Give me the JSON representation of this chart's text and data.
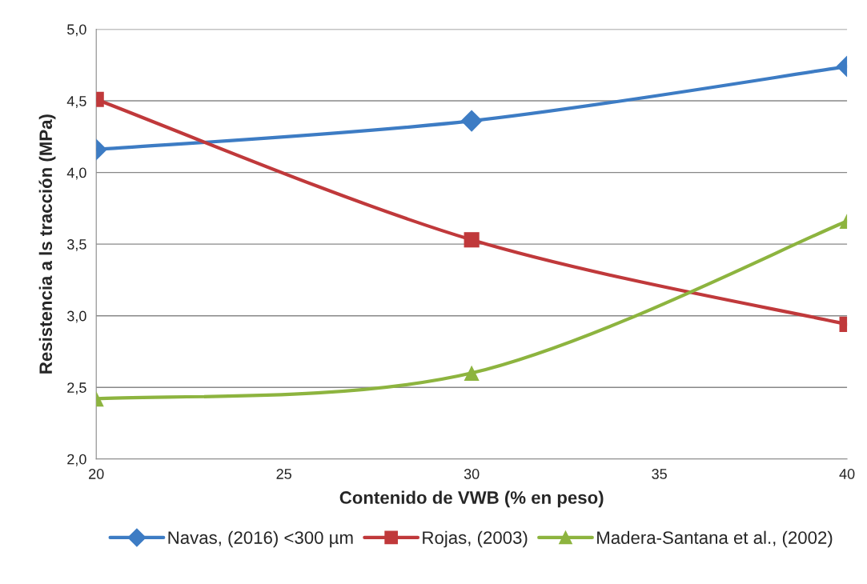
{
  "chart_data": {
    "type": "line",
    "xlabel": "Contenido de VWB (% en peso)",
    "ylabel": "Resistencia a ls tracción (MPa)",
    "x": [
      20,
      30,
      40
    ],
    "series": [
      {
        "name": "Navas, (2016) <300 µm",
        "color": "#3d7cc4",
        "marker": "diamond",
        "values": [
          4.16,
          4.36,
          4.74
        ]
      },
      {
        "name": "Rojas, (2003)",
        "color": "#c0393b",
        "marker": "square",
        "values": [
          4.51,
          3.53,
          2.94
        ]
      },
      {
        "name": "Madera-Santana et al., (2002)",
        "color": "#8db43f",
        "marker": "triangle",
        "values": [
          2.42,
          2.6,
          3.66
        ]
      }
    ],
    "xlim": [
      20,
      40
    ],
    "xticks": [
      20,
      25,
      30,
      35,
      40
    ],
    "ylim": [
      2.0,
      5.0
    ],
    "yticks": [
      {
        "value": 2.0,
        "label": "2,0"
      },
      {
        "value": 2.5,
        "label": "2,5"
      },
      {
        "value": 3.0,
        "label": "3,0"
      },
      {
        "value": 3.5,
        "label": "3,5"
      },
      {
        "value": 4.0,
        "label": "4,0"
      },
      {
        "value": 4.5,
        "label": "4,5"
      },
      {
        "value": 5.0,
        "label": "5,0"
      }
    ],
    "grid": "y",
    "legend": "bottom",
    "line_style": "solid"
  }
}
